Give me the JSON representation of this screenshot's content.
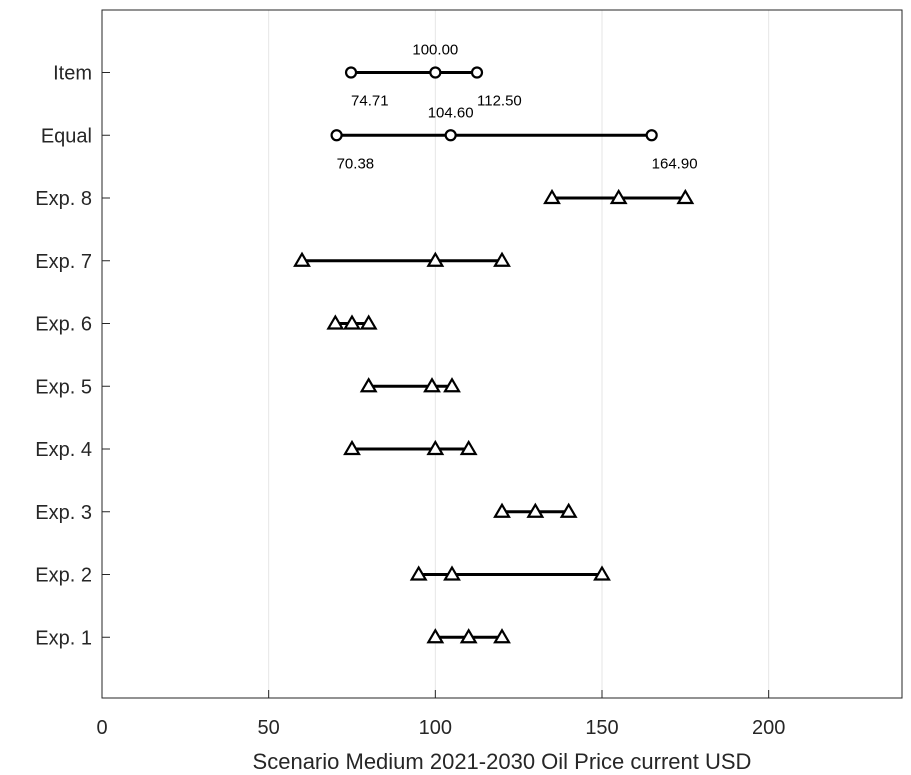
{
  "chart_data": {
    "type": "dumbbell",
    "xlabel": "Scenario Medium 2021-2030 Oil Price current USD",
    "ylabel": "",
    "xlim": [
      0,
      240
    ],
    "xticks": [
      0,
      50,
      100,
      150,
      200
    ],
    "grid": "vertical",
    "legend": "none",
    "colors": {
      "line": "#000000",
      "grid": "#e6e6e6",
      "axis": "#262626"
    },
    "categories": [
      "Item",
      "Equal",
      "Exp. 8",
      "Exp. 7",
      "Exp. 6",
      "Exp. 5",
      "Exp. 4",
      "Exp. 3",
      "Exp. 2",
      "Exp. 1"
    ],
    "rows": [
      {
        "label": "Item",
        "marker": "circle",
        "low": 74.71,
        "mid": 100.0,
        "high": 112.5,
        "labels": {
          "low": "74.71",
          "mid": "100.00",
          "high": "112.50"
        }
      },
      {
        "label": "Equal",
        "marker": "circle",
        "low": 70.38,
        "mid": 104.6,
        "high": 164.9,
        "labels": {
          "low": "70.38",
          "mid": "104.60",
          "high": "164.90"
        }
      },
      {
        "label": "Exp. 8",
        "marker": "triangle",
        "low": 135,
        "mid": 155,
        "high": 175
      },
      {
        "label": "Exp. 7",
        "marker": "triangle",
        "low": 60,
        "mid": 100,
        "high": 120
      },
      {
        "label": "Exp. 6",
        "marker": "triangle",
        "low": 70,
        "mid": 75,
        "high": 80
      },
      {
        "label": "Exp. 5",
        "marker": "triangle",
        "low": 80,
        "mid": 99,
        "high": 105
      },
      {
        "label": "Exp. 4",
        "marker": "triangle",
        "low": 75,
        "mid": 100,
        "high": 110
      },
      {
        "label": "Exp. 3",
        "marker": "triangle",
        "low": 120,
        "mid": 130,
        "high": 140
      },
      {
        "label": "Exp. 2",
        "marker": "triangle",
        "low": 95,
        "mid": 105,
        "high": 150
      },
      {
        "label": "Exp. 1",
        "marker": "triangle",
        "low": 100,
        "mid": 110,
        "high": 120
      }
    ]
  }
}
